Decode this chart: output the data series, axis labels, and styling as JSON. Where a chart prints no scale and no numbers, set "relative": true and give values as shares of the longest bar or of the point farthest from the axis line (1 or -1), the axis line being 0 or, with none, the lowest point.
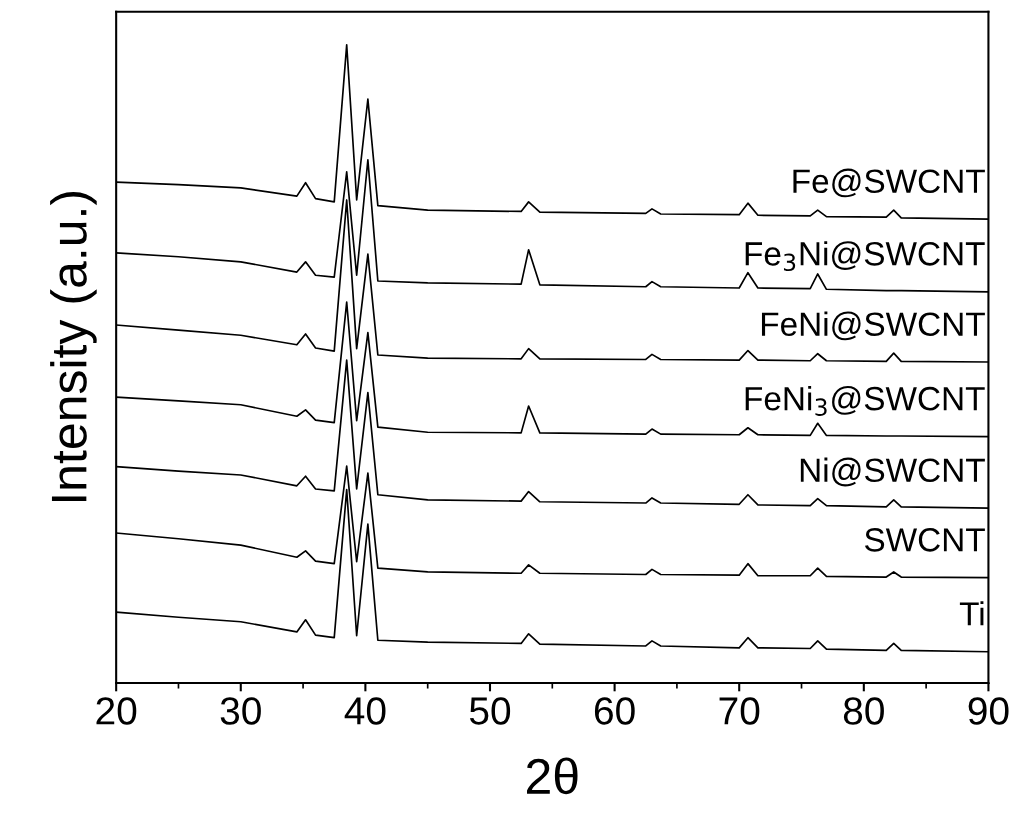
{
  "chart_data": {
    "type": "line",
    "relative": true,
    "xlabel": "2θ",
    "ylabel": "Intensity (a.u.)",
    "xlim": [
      20,
      90
    ],
    "xticks": [
      20,
      30,
      40,
      50,
      60,
      70,
      80,
      90
    ],
    "tick_labels": "x",
    "legend": false,
    "grid": false,
    "x": [
      20,
      25,
      30,
      34.5,
      35.2,
      36,
      37.5,
      38.5,
      39.3,
      40.2,
      41,
      45,
      52.5,
      53.1,
      54,
      62.5,
      63,
      63.7,
      70,
      70.7,
      71.5,
      75.7,
      76.3,
      77,
      81.8,
      82.4,
      83,
      90
    ],
    "series": [
      {
        "name": "Fe@SWCNT",
        "color": "#000000",
        "values": [
          0.785,
          0.781,
          0.776,
          0.763,
          0.784,
          0.759,
          0.754,
          1.0,
          0.757,
          0.915,
          0.748,
          0.741,
          0.739,
          0.754,
          0.738,
          0.736,
          0.743,
          0.735,
          0.734,
          0.752,
          0.733,
          0.732,
          0.741,
          0.731,
          0.73,
          0.741,
          0.729,
          0.727
        ]
      },
      {
        "name": "Fe$_{3}$Ni@SWCNT",
        "color": "#000000",
        "values": [
          0.674,
          0.668,
          0.66,
          0.644,
          0.66,
          0.639,
          0.636,
          0.801,
          0.639,
          0.82,
          0.63,
          0.627,
          0.625,
          0.679,
          0.624,
          0.621,
          0.629,
          0.621,
          0.619,
          0.643,
          0.619,
          0.618,
          0.641,
          0.617,
          0.615,
          0.615,
          0.615,
          0.613
        ]
      },
      {
        "name": "FeNi@SWCNT",
        "color": "#000000",
        "values": [
          0.561,
          0.553,
          0.545,
          0.53,
          0.547,
          0.525,
          0.52,
          0.757,
          0.524,
          0.672,
          0.514,
          0.509,
          0.508,
          0.524,
          0.508,
          0.507,
          0.515,
          0.507,
          0.506,
          0.521,
          0.506,
          0.505,
          0.516,
          0.505,
          0.504,
          0.517,
          0.504,
          0.503
        ]
      },
      {
        "name": "FeNi$_{3}$@SWCNT",
        "color": "#000000",
        "values": [
          0.448,
          0.442,
          0.436,
          0.418,
          0.428,
          0.412,
          0.408,
          0.597,
          0.411,
          0.549,
          0.401,
          0.393,
          0.392,
          0.434,
          0.392,
          0.39,
          0.398,
          0.39,
          0.389,
          0.4,
          0.389,
          0.388,
          0.407,
          0.388,
          0.387,
          0.387,
          0.387,
          0.386
        ]
      },
      {
        "name": "Ni@SWCNT",
        "color": "#000000",
        "values": [
          0.339,
          0.332,
          0.326,
          0.309,
          0.324,
          0.304,
          0.301,
          0.506,
          0.304,
          0.455,
          0.295,
          0.287,
          0.285,
          0.3,
          0.284,
          0.282,
          0.29,
          0.282,
          0.28,
          0.295,
          0.279,
          0.278,
          0.289,
          0.278,
          0.276,
          0.287,
          0.276,
          0.274
        ]
      },
      {
        "name": "SWCNT",
        "color": "#000000",
        "values": [
          0.235,
          0.226,
          0.216,
          0.197,
          0.207,
          0.191,
          0.187,
          0.34,
          0.19,
          0.329,
          0.18,
          0.174,
          0.172,
          0.185,
          0.172,
          0.17,
          0.178,
          0.17,
          0.169,
          0.187,
          0.168,
          0.168,
          0.18,
          0.167,
          0.166,
          0.174,
          0.166,
          0.165
        ]
      },
      {
        "name": "Ti",
        "color": "#000000",
        "values": [
          0.111,
          0.103,
          0.096,
          0.08,
          0.099,
          0.075,
          0.071,
          0.303,
          0.074,
          0.249,
          0.067,
          0.064,
          0.062,
          0.077,
          0.061,
          0.058,
          0.066,
          0.058,
          0.055,
          0.071,
          0.055,
          0.054,
          0.066,
          0.053,
          0.051,
          0.062,
          0.051,
          0.049
        ]
      }
    ]
  }
}
